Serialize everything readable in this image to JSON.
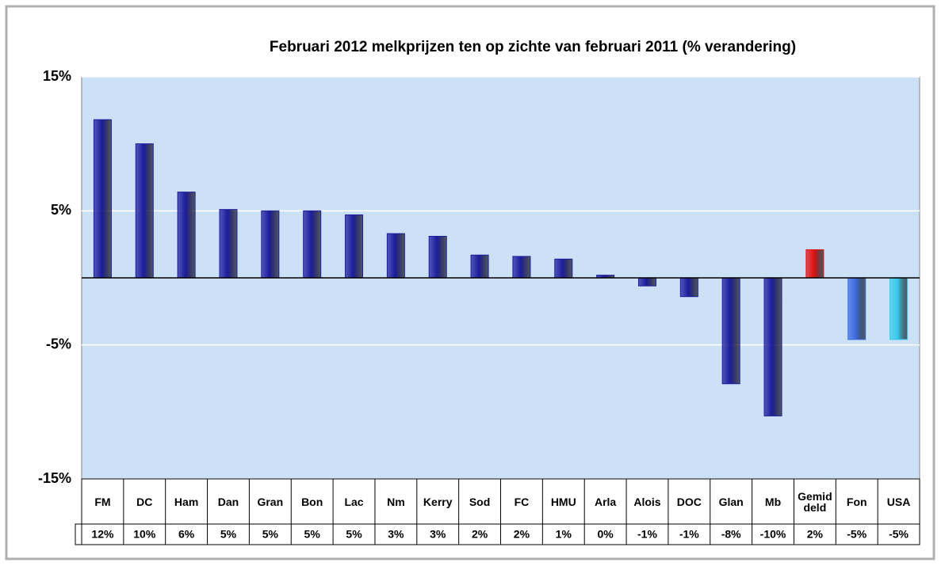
{
  "chart_data": {
    "type": "bar",
    "title": "Februari 2012 melkprijzen ten op zichte van februari 2011 (% verandering)",
    "categories": [
      "FM",
      "DC",
      "Ham",
      "Dan",
      "Gran",
      "Bon",
      "Lac",
      "Nm",
      "Kerry",
      "Sod",
      "FC",
      "HMU",
      "Arla",
      "Alois",
      "DOC",
      "Glan",
      "Mb",
      "Gemiddeld",
      "Fon",
      "USA"
    ],
    "values": [
      11.8,
      10.0,
      6.4,
      5.1,
      5.0,
      5.0,
      4.7,
      3.3,
      3.1,
      1.7,
      1.6,
      1.4,
      0.2,
      -0.6,
      -1.4,
      -7.9,
      -10.3,
      2.1,
      -4.6,
      -4.6
    ],
    "value_labels": [
      "12%",
      "10%",
      "6%",
      "5%",
      "5%",
      "5%",
      "5%",
      "3%",
      "3%",
      "2%",
      "2%",
      "1%",
      "0%",
      "-1%",
      "-1%",
      "-8%",
      "-10%",
      "2%",
      "-5%",
      "-5%"
    ],
    "colors": [
      "#1c1c9c",
      "#1c1c9c",
      "#1c1c9c",
      "#1c1c9c",
      "#1c1c9c",
      "#1c1c9c",
      "#1c1c9c",
      "#1c1c9c",
      "#1c1c9c",
      "#1c1c9c",
      "#1c1c9c",
      "#1c1c9c",
      "#1c1c9c",
      "#1c1c9c",
      "#1c1c9c",
      "#1c1c9c",
      "#1c1c9c",
      "#e01010",
      "#3a6ae0",
      "#38c8ec"
    ],
    "ylim": [
      -15,
      15
    ],
    "yticks": [
      {
        "value": -15,
        "label": "-15%"
      },
      {
        "value": -5,
        "label": "-5%"
      },
      {
        "value": 5,
        "label": "5%"
      },
      {
        "value": 15,
        "label": "15%"
      }
    ],
    "grid": true
  }
}
